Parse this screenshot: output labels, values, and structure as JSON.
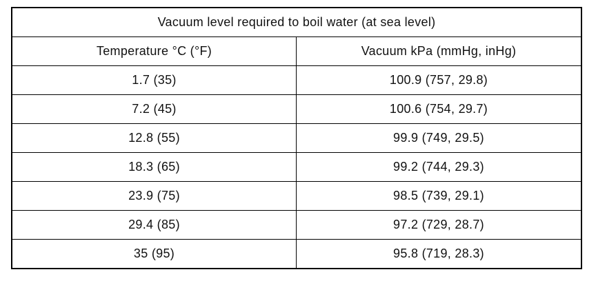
{
  "table": {
    "title": "Vacuum level required to boil water (at sea level)",
    "headers": [
      "Temperature °C (°F)",
      "Vacuum kPa (mmHg, inHg)"
    ],
    "rows": [
      [
        "1.7 (35)",
        "100.9 (757, 29.8)"
      ],
      [
        "7.2 (45)",
        "100.6 (754, 29.7)"
      ],
      [
        "12.8 (55)",
        "99.9 (749, 29.5)"
      ],
      [
        "18.3 (65)",
        "99.2 (744, 29.3)"
      ],
      [
        "23.9 (75)",
        "98.5 (739, 29.1)"
      ],
      [
        "29.4 (85)",
        "97.2 (729, 28.7)"
      ],
      [
        "35 (95)",
        "95.8 (719, 28.3)"
      ]
    ]
  }
}
